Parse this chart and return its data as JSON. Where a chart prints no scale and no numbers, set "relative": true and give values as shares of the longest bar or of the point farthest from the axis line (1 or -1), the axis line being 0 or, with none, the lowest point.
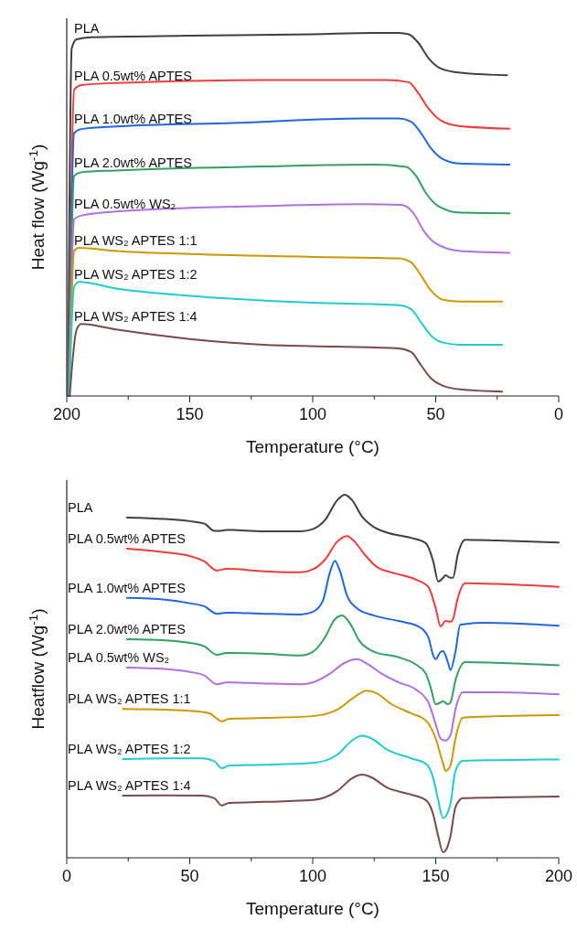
{
  "chart_data": [
    {
      "type": "line",
      "xlabel": "Temperature (°C)",
      "ylabel": "Heat flow (Wg$^{-1}$)",
      "relative": true,
      "xlim": [
        200,
        0
      ],
      "xticks": [
        200,
        {
          "value": 175,
          "label": null
        },
        150,
        {
          "value": 125,
          "label": null
        },
        100,
        {
          "value": 75,
          "label": null
        },
        50,
        {
          "value": 25,
          "label": null
        },
        0
      ],
      "series": [
        {
          "name": "PLA",
          "color": "#404040",
          "x": [
            199.5,
            198,
            196,
            190,
            150,
            100,
            75,
            65,
            61,
            57,
            53,
            48,
            40,
            21
          ],
          "values": [
            0,
            0.957,
            0.982,
            0.988,
            0.992,
            0.996,
            1.0,
            1.0,
            0.996,
            0.972,
            0.931,
            0.902,
            0.89,
            0.883
          ]
        },
        {
          "name": "PLA 0.5wt% APTES",
          "color": "#f03c3c",
          "x": [
            199.3,
            197,
            194,
            180,
            120,
            70,
            61,
            57,
            53,
            48,
            40,
            20
          ],
          "values": [
            0,
            0.843,
            0.856,
            0.862,
            0.87,
            0.87,
            0.864,
            0.833,
            0.792,
            0.759,
            0.743,
            0.736
          ]
        },
        {
          "name": "PLA 1.0wt% APTES",
          "color": "#2266dd",
          "x": [
            199.2,
            197,
            194,
            180,
            130,
            80,
            65,
            60,
            56,
            52,
            47,
            40,
            20
          ],
          "values": [
            0,
            0.724,
            0.735,
            0.742,
            0.752,
            0.764,
            0.764,
            0.755,
            0.724,
            0.683,
            0.652,
            0.64,
            0.637
          ]
        },
        {
          "name": "PLA 2.0wt% APTES",
          "color": "#33a060",
          "x": [
            199.1,
            197,
            194,
            180,
            120,
            75,
            62,
            58,
            54,
            49,
            40,
            20
          ],
          "values": [
            0,
            0.606,
            0.616,
            0.621,
            0.632,
            0.637,
            0.631,
            0.606,
            0.559,
            0.523,
            0.505,
            0.503
          ]
        },
        {
          "name": "PLA 0.5wt% WS₂",
          "color": "#b070e0",
          "x": [
            199,
            197,
            194,
            180,
            120,
            80,
            64,
            59,
            55,
            50,
            40,
            20
          ],
          "values": [
            0,
            0.487,
            0.497,
            0.508,
            0.523,
            0.528,
            0.526,
            0.503,
            0.456,
            0.42,
            0.399,
            0.394
          ]
        },
        {
          "name": "PLA WS₂ APTES 1:1",
          "color": "#cc9900",
          "x": [
            199,
            197,
            195,
            180,
            150,
            100,
            65,
            60,
            56,
            52,
            47,
            40,
            23
          ],
          "values": [
            0,
            0.399,
            0.408,
            0.399,
            0.391,
            0.383,
            0.379,
            0.368,
            0.332,
            0.291,
            0.265,
            0.26,
            0.26
          ]
        },
        {
          "name": "PLA WS₂ APTES 1:2",
          "color": "#22cccc",
          "x": [
            199,
            197,
            195,
            180,
            150,
            100,
            65,
            60,
            56,
            52,
            47,
            40,
            23
          ],
          "values": [
            0,
            0.301,
            0.314,
            0.296,
            0.276,
            0.257,
            0.25,
            0.239,
            0.203,
            0.167,
            0.147,
            0.141,
            0.141
          ]
        },
        {
          "name": "PLA WS₂ APTES 1:4",
          "color": "#7a4a4a",
          "x": [
            198.8,
            196,
            194,
            180,
            150,
            120,
            90,
            65,
            60,
            56,
            52,
            47,
            40,
            23
          ],
          "values": [
            0,
            0.183,
            0.198,
            0.183,
            0.157,
            0.141,
            0.136,
            0.131,
            0.121,
            0.085,
            0.049,
            0.028,
            0.018,
            0.012
          ]
        }
      ]
    },
    {
      "type": "line",
      "xlabel": "Temperature (°C)",
      "ylabel": "Heatflow (Wg$^{-1}$)",
      "relative": true,
      "xlim": [
        0,
        200
      ],
      "xticks": [
        0,
        {
          "value": 25,
          "label": null
        },
        50,
        {
          "value": 75,
          "label": null
        },
        100,
        {
          "value": 125,
          "label": null
        },
        150,
        {
          "value": 175,
          "label": null
        },
        200
      ],
      "series": [
        {
          "name": "PLA",
          "color": "#404040",
          "x": [
            24.5,
            40,
            50,
            56,
            60,
            62,
            65,
            80,
            95,
            100,
            105,
            110,
            113,
            116,
            120,
            125,
            130,
            140,
            146,
            149,
            151,
            153,
            154,
            156,
            157,
            159,
            162,
            175,
            200
          ],
          "values": [
            0.937,
            0.933,
            0.927,
            0.92,
            0.9,
            0.9,
            0.903,
            0.899,
            0.899,
            0.905,
            0.93,
            0.985,
            1.0,
            0.985,
            0.94,
            0.91,
            0.896,
            0.881,
            0.866,
            0.816,
            0.761,
            0.771,
            0.778,
            0.771,
            0.771,
            0.836,
            0.876,
            0.874,
            0.868
          ]
        },
        {
          "name": "PLA 0.5wt% APTES",
          "color": "#f03c3c",
          "x": [
            24.5,
            40,
            50,
            56,
            61,
            65,
            80,
            95,
            100,
            105,
            110,
            114,
            117,
            121,
            126,
            132,
            142,
            147,
            150,
            152,
            154,
            156,
            157,
            159,
            162,
            175,
            200
          ],
          "values": [
            0.851,
            0.841,
            0.831,
            0.816,
            0.791,
            0.796,
            0.789,
            0.786,
            0.794,
            0.821,
            0.871,
            0.886,
            0.871,
            0.836,
            0.801,
            0.786,
            0.766,
            0.746,
            0.687,
            0.637,
            0.652,
            0.65,
            0.657,
            0.716,
            0.756,
            0.754,
            0.746
          ]
        },
        {
          "name": "PLA 1.0wt% APTES",
          "color": "#2266dd",
          "x": [
            24.5,
            40,
            50,
            56,
            61,
            65,
            80,
            95,
            100,
            104,
            107,
            109,
            111,
            114,
            118,
            125,
            135,
            143,
            147,
            149,
            150,
            152,
            153,
            155,
            156,
            158,
            160,
            170,
            200
          ],
          "values": [
            0.716,
            0.711,
            0.701,
            0.692,
            0.672,
            0.675,
            0.672,
            0.67,
            0.677,
            0.706,
            0.786,
            0.818,
            0.791,
            0.721,
            0.687,
            0.667,
            0.652,
            0.637,
            0.607,
            0.557,
            0.547,
            0.567,
            0.569,
            0.537,
            0.517,
            0.567,
            0.642,
            0.647,
            0.639
          ]
        },
        {
          "name": "PLA 2.0wt% APTES",
          "color": "#33a060",
          "x": [
            24.5,
            40,
            50,
            56,
            61,
            65,
            80,
            95,
            100,
            105,
            109,
            112,
            115,
            119,
            125,
            135,
            142,
            146,
            148,
            150,
            152,
            153,
            155,
            156,
            158,
            162,
            175,
            200
          ],
          "values": [
            0.602,
            0.599,
            0.592,
            0.582,
            0.559,
            0.564,
            0.562,
            0.557,
            0.567,
            0.607,
            0.657,
            0.667,
            0.647,
            0.597,
            0.567,
            0.552,
            0.532,
            0.507,
            0.468,
            0.423,
            0.428,
            0.431,
            0.423,
            0.428,
            0.488,
            0.539,
            0.537,
            0.53
          ]
        },
        {
          "name": "PLA 0.5wt% WS₂",
          "color": "#b070e0",
          "x": [
            24.5,
            40,
            50,
            56,
            61,
            65,
            80,
            95,
            100,
            107,
            113,
            118,
            122,
            128,
            135,
            142,
            147,
            150,
            152,
            154,
            156,
            158,
            161,
            175,
            200
          ],
          "values": [
            0.524,
            0.52,
            0.512,
            0.502,
            0.478,
            0.483,
            0.48,
            0.478,
            0.483,
            0.507,
            0.537,
            0.547,
            0.535,
            0.507,
            0.483,
            0.463,
            0.428,
            0.368,
            0.328,
            0.323,
            0.338,
            0.408,
            0.456,
            0.456,
            0.45
          ]
        },
        {
          "name": "PLA WS₂ APTES 1:1",
          "color": "#cc9900",
          "x": [
            22.8,
            40,
            50,
            58,
            61,
            63,
            66,
            80,
            100,
            110,
            117,
            122,
            126,
            132,
            140,
            146,
            150,
            153,
            154,
            156,
            158,
            161,
            175,
            200
          ],
          "values": [
            0.41,
            0.408,
            0.405,
            0.398,
            0.383,
            0.376,
            0.383,
            0.385,
            0.39,
            0.408,
            0.443,
            0.46,
            0.453,
            0.423,
            0.398,
            0.378,
            0.328,
            0.259,
            0.239,
            0.254,
            0.328,
            0.386,
            0.39,
            0.393
          ]
        },
        {
          "name": "PLA WS₂ APTES 1:2",
          "color": "#22cccc",
          "x": [
            22.8,
            40,
            55,
            60,
            63,
            66,
            80,
            100,
            110,
            116,
            120,
            124,
            130,
            140,
            146,
            149,
            151,
            153,
            154,
            156,
            158,
            161,
            175,
            200
          ],
          "values": [
            0.272,
            0.274,
            0.274,
            0.266,
            0.247,
            0.254,
            0.256,
            0.261,
            0.284,
            0.323,
            0.336,
            0.328,
            0.299,
            0.274,
            0.259,
            0.219,
            0.159,
            0.109,
            0.114,
            0.149,
            0.239,
            0.267,
            0.269,
            0.271
          ]
        },
        {
          "name": "PLA WS₂ APTES 1:4",
          "color": "#7a4a4a",
          "x": [
            22.8,
            40,
            55,
            60,
            63,
            66,
            80,
            100,
            110,
            116,
            120,
            124,
            130,
            140,
            146,
            149,
            151,
            153,
            154,
            156,
            158,
            161,
            175,
            200
          ],
          "values": [
            0.171,
            0.172,
            0.171,
            0.164,
            0.144,
            0.151,
            0.154,
            0.159,
            0.184,
            0.219,
            0.229,
            0.221,
            0.194,
            0.174,
            0.159,
            0.119,
            0.06,
            0.015,
            0.02,
            0.06,
            0.139,
            0.164,
            0.166,
            0.169
          ]
        }
      ]
    }
  ]
}
